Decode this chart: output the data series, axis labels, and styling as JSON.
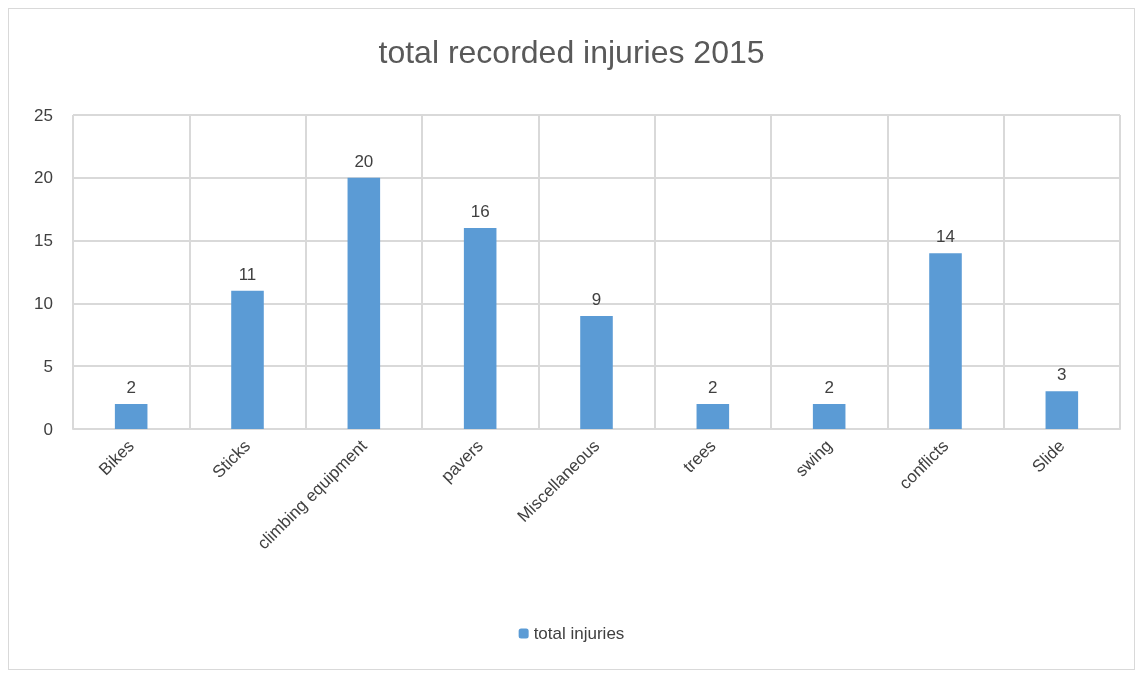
{
  "chart_data": {
    "type": "bar",
    "title": "total recorded injuries 2015",
    "categories": [
      "Bikes",
      "Sticks",
      "climbing equipment",
      "pavers",
      "Miscellaneous",
      "trees",
      "swing",
      "conflicts",
      "Slide"
    ],
    "series": [
      {
        "name": "total injuries",
        "color": "#5b9bd5",
        "values": [
          2,
          11,
          20,
          16,
          9,
          2,
          2,
          14,
          3
        ]
      }
    ],
    "ylim": [
      0,
      25
    ],
    "yticks": [
      0,
      5,
      10,
      15,
      20,
      25
    ],
    "grid": true,
    "legend": "bottom",
    "data_labels": true
  }
}
